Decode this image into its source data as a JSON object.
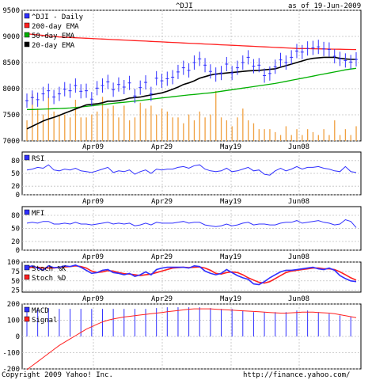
{
  "header": {
    "symbol": "^DJI",
    "date": "as of 19-Jun-2009"
  },
  "footer": {
    "copyright": "Copyright 2009 Yahoo! Inc.",
    "url": "http://finance.yahoo.com/"
  },
  "colors": {
    "price": "#3030ff",
    "ema200": "#ff2020",
    "ema50": "#00b000",
    "ema20": "#000000",
    "volume": "#f0a040",
    "indicator": "#3030ff",
    "signal": "#ff2020",
    "grid": "#c0c0c0"
  },
  "x_axis": {
    "ticks": [
      "Apr09",
      "Apr29",
      "May19",
      "Jun08"
    ]
  },
  "chart_data": [
    {
      "type": "line",
      "title": "^DJI",
      "legend": [
        "^DJI - Daily",
        "200-day EMA",
        "50-day EMA",
        "20-day EMA"
      ],
      "yticks": [
        7000,
        7500,
        8000,
        8500,
        9000,
        9500
      ],
      "ylim": [
        7000,
        9500
      ],
      "n": 62,
      "series": [
        {
          "name": "^DJI - Daily",
          "values": [
            7770,
            7830,
            7790,
            7900,
            7960,
            7840,
            7900,
            7990,
            7960,
            8060,
            7950,
            7960,
            7800,
            8010,
            8060,
            8130,
            7980,
            8080,
            8030,
            8110,
            7860,
            8020,
            8120,
            7900,
            8200,
            8150,
            8190,
            8220,
            8320,
            8400,
            8350,
            8500,
            8570,
            8450,
            8330,
            8270,
            8300,
            8470,
            8300,
            8400,
            8500,
            8600,
            8430,
            8450,
            8250,
            8290,
            8420,
            8550,
            8500,
            8600,
            8720,
            8700,
            8770,
            8780,
            8800,
            8760,
            8750,
            8620,
            8570,
            8540,
            8510,
            8560
          ]
        },
        {
          "name": "200-day EMA",
          "values": [
            9050,
            9040,
            9030,
            9020,
            9010,
            9000,
            8990,
            8985,
            8980,
            8975,
            8970,
            8965,
            8960,
            8955,
            8950,
            8945,
            8940,
            8935,
            8930,
            8925,
            8920,
            8915,
            8910,
            8905,
            8900,
            8895,
            8890,
            8885,
            8880,
            8875,
            8870,
            8865,
            8860,
            8855,
            8850,
            8845,
            8840,
            8835,
            8830,
            8825,
            8820,
            8815,
            8810,
            8805,
            8800,
            8795,
            8790,
            8785,
            8780,
            8775,
            8770,
            8768,
            8766,
            8764,
            8762,
            8760,
            8758,
            8756,
            8754,
            8752,
            8750,
            8748
          ]
        },
        {
          "name": "50-day EMA",
          "values": [
            7600,
            7602,
            7605,
            7608,
            7612,
            7616,
            7620,
            7625,
            7630,
            7640,
            7650,
            7660,
            7672,
            7684,
            7696,
            7708,
            7720,
            7730,
            7740,
            7750,
            7762,
            7774,
            7786,
            7798,
            7810,
            7822,
            7834,
            7846,
            7858,
            7870,
            7880,
            7890,
            7900,
            7910,
            7920,
            7935,
            7950,
            7965,
            7980,
            7995,
            8010,
            8025,
            8040,
            8055,
            8070,
            8085,
            8100,
            8120,
            8140,
            8160,
            8180,
            8200,
            8220,
            8240,
            8260,
            8280,
            8300,
            8320,
            8340,
            8360,
            8375,
            8390
          ]
        },
        {
          "name": "20-day EMA",
          "values": [
            7230,
            7280,
            7330,
            7380,
            7420,
            7450,
            7490,
            7530,
            7570,
            7610,
            7650,
            7690,
            7700,
            7710,
            7730,
            7760,
            7760,
            7770,
            7790,
            7820,
            7830,
            7840,
            7860,
            7880,
            7900,
            7920,
            7950,
            7990,
            8030,
            8080,
            8110,
            8150,
            8200,
            8230,
            8260,
            8280,
            8290,
            8300,
            8310,
            8320,
            8330,
            8340,
            8345,
            8350,
            8360,
            8370,
            8380,
            8410,
            8440,
            8470,
            8500,
            8530,
            8560,
            8580,
            8590,
            8600,
            8600,
            8600,
            8580,
            8570,
            8560,
            8560
          ]
        }
      ],
      "volume": [
        0.35,
        0.8,
        0.55,
        0.45,
        0.75,
        0.5,
        0.45,
        0.45,
        0.4,
        0.7,
        0.4,
        0.4,
        0.45,
        0.5,
        0.75,
        0.55,
        0.6,
        0.4,
        0.6,
        0.35,
        0.4,
        0.65,
        0.55,
        0.6,
        0.45,
        0.55,
        0.5,
        0.4,
        0.4,
        0.3,
        0.45,
        0.35,
        0.5,
        0.4,
        0.45,
        0.85,
        0.4,
        0.35,
        0.25,
        0.4,
        0.55,
        0.35,
        0.3,
        0.2,
        0.2,
        0.2,
        0.15,
        0.1,
        0.25,
        0.1,
        0.2,
        0.1,
        0.2,
        0.15,
        0.1,
        0.2,
        0.1,
        0.35,
        0.1,
        0.2,
        0.1,
        0.25
      ]
    },
    {
      "type": "line",
      "legend": [
        "RSI"
      ],
      "yticks": [
        0,
        20,
        50,
        80
      ],
      "ylim": [
        0,
        100
      ],
      "series": [
        {
          "name": "RSI",
          "values": [
            58,
            60,
            64,
            62,
            70,
            58,
            56,
            60,
            58,
            62,
            56,
            54,
            52,
            56,
            60,
            64,
            52,
            56,
            54,
            58,
            48,
            54,
            58,
            50,
            60,
            58,
            60,
            60,
            64,
            66,
            62,
            68,
            70,
            60,
            56,
            54,
            56,
            62,
            54,
            56,
            60,
            64,
            56,
            58,
            48,
            46,
            56,
            62,
            56,
            60,
            66,
            60,
            64,
            64,
            66,
            62,
            60,
            56,
            54,
            66,
            54,
            52
          ]
        }
      ]
    },
    {
      "type": "line",
      "legend": [
        "MFI"
      ],
      "yticks": [
        0,
        20,
        50,
        80
      ],
      "ylim": [
        0,
        100
      ],
      "series": [
        {
          "name": "MFI",
          "values": [
            62,
            64,
            62,
            66,
            66,
            60,
            60,
            62,
            60,
            64,
            60,
            60,
            58,
            60,
            62,
            64,
            60,
            62,
            60,
            62,
            56,
            58,
            62,
            58,
            64,
            62,
            62,
            62,
            64,
            66,
            62,
            64,
            64,
            58,
            56,
            54,
            56,
            60,
            56,
            58,
            62,
            64,
            58,
            60,
            60,
            58,
            58,
            62,
            64,
            64,
            68,
            62,
            64,
            66,
            68,
            64,
            62,
            58,
            60,
            70,
            66,
            52
          ]
        }
      ]
    },
    {
      "type": "line",
      "legend": [
        "Stoch %K",
        "Stoch %D"
      ],
      "yticks": [
        25,
        50,
        75,
        100
      ],
      "ylim": [
        20,
        100
      ],
      "series": [
        {
          "name": "Stoch %K",
          "values": [
            86,
            90,
            84,
            78,
            90,
            85,
            86,
            90,
            88,
            92,
            86,
            78,
            70,
            72,
            78,
            80,
            72,
            70,
            66,
            70,
            62,
            66,
            74,
            66,
            80,
            84,
            86,
            86,
            86,
            86,
            84,
            90,
            88,
            76,
            70,
            66,
            70,
            80,
            72,
            64,
            58,
            54,
            42,
            40,
            48,
            58,
            66,
            74,
            78,
            78,
            80,
            82,
            84,
            86,
            82,
            80,
            84,
            78,
            64,
            56,
            50,
            48
          ]
        },
        {
          "name": "Stoch %D",
          "values": [
            84,
            86,
            86,
            84,
            84,
            84,
            86,
            87,
            88,
            90,
            88,
            84,
            76,
            72,
            74,
            77,
            76,
            72,
            69,
            68,
            66,
            64,
            66,
            68,
            72,
            76,
            80,
            84,
            85,
            86,
            85,
            86,
            87,
            84,
            78,
            70,
            68,
            72,
            74,
            72,
            66,
            58,
            52,
            46,
            44,
            48,
            56,
            64,
            72,
            76,
            78,
            80,
            82,
            84,
            84,
            82,
            82,
            80,
            74,
            66,
            58,
            52
          ]
        }
      ]
    },
    {
      "type": "bar",
      "legend": [
        "MACD",
        "Signal"
      ],
      "yticks": [
        -200,
        -100,
        0,
        100,
        200
      ],
      "ylim": [
        -200,
        200
      ],
      "macd": [
        160,
        170,
        170,
        170,
        175,
        170,
        170,
        170,
        170,
        170,
        170,
        170,
        170,
        170,
        170,
        170,
        170,
        170,
        170,
        170,
        170,
        170,
        170,
        170,
        175,
        175,
        180,
        180,
        180,
        180,
        180,
        180,
        180,
        180,
        175,
        170,
        170,
        170,
        170,
        170,
        160,
        160,
        150,
        150,
        150,
        150,
        150,
        150,
        150,
        160,
        160,
        160,
        160,
        160,
        150,
        150,
        140,
        140,
        130,
        130,
        120,
        110
      ],
      "signal": [
        -205,
        -180,
        -155,
        -130,
        -105,
        -80,
        -55,
        -35,
        -15,
        5,
        25,
        45,
        60,
        75,
        90,
        100,
        108,
        114,
        120,
        124,
        128,
        132,
        136,
        140,
        144,
        148,
        152,
        156,
        160,
        164,
        168,
        170,
        170,
        170,
        170,
        168,
        166,
        164,
        162,
        160,
        158,
        156,
        154,
        152,
        150,
        148,
        146,
        144,
        144,
        146,
        148,
        150,
        150,
        150,
        148,
        146,
        144,
        140,
        134,
        128,
        122,
        116
      ]
    }
  ]
}
